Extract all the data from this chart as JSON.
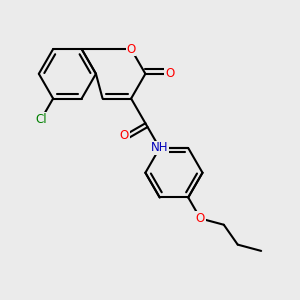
{
  "bg_color": "#ebebeb",
  "bond_color": "#000000",
  "bond_width": 1.5,
  "figsize": [
    3.0,
    3.0
  ],
  "dpi": 100,
  "atom_colors": {
    "O": "#ff0000",
    "N": "#0000bb",
    "Cl": "#008000",
    "C": "#000000",
    "H": "#666666"
  },
  "font_size": 8.5,
  "xlim": [
    -2.5,
    3.0
  ],
  "ylim": [
    -2.0,
    2.5
  ]
}
